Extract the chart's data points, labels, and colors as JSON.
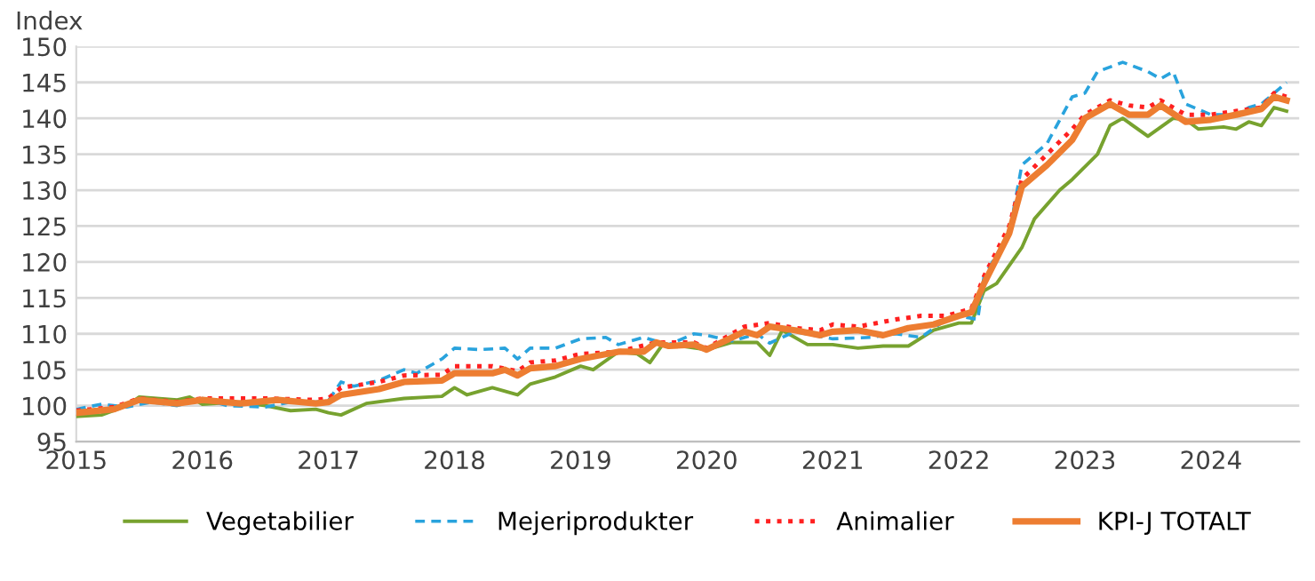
{
  "chart_data": {
    "type": "line",
    "ylabel": "Index",
    "xlim": [
      2015,
      2024.7
    ],
    "xticks": [
      2015,
      2016,
      2017,
      2018,
      2019,
      2020,
      2021,
      2022,
      2023,
      2024
    ],
    "ylim": [
      95,
      150
    ],
    "yticks": [
      95,
      100,
      105,
      110,
      115,
      120,
      125,
      130,
      135,
      140,
      145,
      150
    ],
    "grid": "y",
    "legend": "bottom",
    "marker": "none",
    "series": [
      {
        "name": "Vegetabilier",
        "color": "#77a22f",
        "line_style": "solid",
        "x": [
          2015.0,
          2015.2,
          2015.4,
          2015.5,
          2015.8,
          2015.9,
          2016.0,
          2016.3,
          2016.5,
          2016.7,
          2016.9,
          2017.0,
          2017.1,
          2017.3,
          2017.6,
          2017.8,
          2017.9,
          2018.0,
          2018.1,
          2018.3,
          2018.5,
          2018.6,
          2018.8,
          2019.0,
          2019.1,
          2019.3,
          2019.45,
          2019.55,
          2019.65,
          2019.8,
          2020.0,
          2020.2,
          2020.4,
          2020.5,
          2020.6,
          2020.8,
          2021.0,
          2021.2,
          2021.4,
          2021.6,
          2021.8,
          2022.0,
          2022.1,
          2022.2,
          2022.3,
          2022.5,
          2022.6,
          2022.8,
          2022.9,
          2023.1,
          2023.2,
          2023.3,
          2023.5,
          2023.7,
          2023.8,
          2023.9,
          2024.1,
          2024.2,
          2024.3,
          2024.4,
          2024.5,
          2024.6
        ],
        "values": [
          98.5,
          98.7,
          100,
          101.2,
          100.8,
          101.2,
          100.2,
          100.5,
          100,
          99.3,
          99.5,
          99,
          98.7,
          100.3,
          101,
          101.2,
          101.3,
          102.5,
          101.5,
          102.5,
          101.5,
          103,
          104,
          105.5,
          105,
          107.5,
          107.2,
          106,
          108.5,
          108.3,
          107.8,
          108.8,
          108.8,
          107,
          110.5,
          108.5,
          108.5,
          108,
          108.3,
          108.3,
          110.5,
          111.5,
          111.5,
          116,
          117,
          122,
          126,
          130,
          131.5,
          135,
          139,
          140,
          137.5,
          140,
          139.8,
          138.5,
          138.8,
          138.5,
          139.5,
          139,
          141.5,
          141
        ]
      },
      {
        "name": "Mejeriprodukter",
        "color": "#29a3dd",
        "line_style": "dashed",
        "x": [
          2015.0,
          2015.2,
          2015.4,
          2015.6,
          2015.8,
          2016.0,
          2016.2,
          2016.5,
          2016.7,
          2016.9,
          2017.0,
          2017.1,
          2017.2,
          2017.4,
          2017.6,
          2017.7,
          2017.9,
          2018.0,
          2018.2,
          2018.4,
          2018.5,
          2018.6,
          2018.8,
          2019.0,
          2019.2,
          2019.3,
          2019.5,
          2019.7,
          2019.9,
          2020.0,
          2020.2,
          2020.4,
          2020.5,
          2020.7,
          2021.0,
          2021.3,
          2021.5,
          2021.7,
          2021.9,
          2022.0,
          2022.15,
          2022.2,
          2022.4,
          2022.5,
          2022.7,
          2022.9,
          2023.0,
          2023.1,
          2023.3,
          2023.5,
          2023.6,
          2023.7,
          2023.8,
          2024.0,
          2024.2,
          2024.3,
          2024.4,
          2024.5,
          2024.6
        ],
        "values": [
          99.5,
          100.2,
          99.8,
          100.5,
          100,
          101,
          100,
          99.8,
          100.5,
          100.5,
          100.7,
          103.3,
          102.7,
          103.5,
          105,
          104.5,
          106.5,
          108,
          107.8,
          108,
          106.5,
          108,
          108,
          109.3,
          109.5,
          108.5,
          109.5,
          108.5,
          110,
          109.8,
          109,
          110,
          108.7,
          110.3,
          109.3,
          109.5,
          110,
          109.5,
          112,
          112.5,
          112,
          118,
          124,
          133.5,
          136.5,
          143,
          143.5,
          146.5,
          147.8,
          146.5,
          145.5,
          146.5,
          142,
          140.5,
          140.5,
          141.5,
          142,
          143.5,
          145
        ]
      },
      {
        "name": "Animalier",
        "color": "#ff2020",
        "line_style": "dotted",
        "x": [
          2015.0,
          2015.3,
          2015.5,
          2015.8,
          2016.0,
          2016.5,
          2016.9,
          2017.0,
          2017.1,
          2017.4,
          2017.6,
          2017.9,
          2018.0,
          2018.3,
          2018.5,
          2018.6,
          2018.8,
          2019.0,
          2019.3,
          2019.6,
          2019.9,
          2020.0,
          2020.3,
          2020.5,
          2020.7,
          2020.9,
          2021.0,
          2021.2,
          2021.5,
          2021.7,
          2021.9,
          2022.1,
          2022.2,
          2022.4,
          2022.5,
          2022.7,
          2022.9,
          2023.0,
          2023.2,
          2023.35,
          2023.5,
          2023.6,
          2023.8,
          2024.0,
          2024.2,
          2024.4,
          2024.5,
          2024.6
        ],
        "values": [
          99.3,
          99.8,
          101,
          100.5,
          101,
          101,
          100.8,
          101,
          102.5,
          103.3,
          104.2,
          104.3,
          105.5,
          105.5,
          104.8,
          106,
          106.3,
          107.2,
          107.5,
          108.8,
          108.8,
          108,
          111,
          111.5,
          110.8,
          110.5,
          111.3,
          111,
          112,
          112.5,
          112.5,
          113.5,
          118,
          125,
          131.5,
          135,
          138.5,
          140.5,
          142.5,
          141.8,
          141.5,
          142.5,
          140.5,
          140.5,
          141,
          141.5,
          143.5,
          143
        ]
      },
      {
        "name": "KPI-J TOTALT",
        "color": "#ed7d31",
        "line_style": "solid",
        "x": [
          2015.0,
          2015.3,
          2015.5,
          2015.8,
          2016.0,
          2016.3,
          2016.6,
          2016.9,
          2017.0,
          2017.1,
          2017.4,
          2017.6,
          2017.9,
          2018.0,
          2018.3,
          2018.4,
          2018.5,
          2018.6,
          2018.8,
          2019.0,
          2019.3,
          2019.5,
          2019.6,
          2019.7,
          2019.9,
          2020.0,
          2020.3,
          2020.4,
          2020.5,
          2020.7,
          2020.9,
          2021.0,
          2021.2,
          2021.4,
          2021.6,
          2021.8,
          2022.0,
          2022.1,
          2022.2,
          2022.4,
          2022.5,
          2022.7,
          2022.9,
          2023.0,
          2023.2,
          2023.35,
          2023.5,
          2023.6,
          2023.8,
          2024.0,
          2024.2,
          2024.4,
          2024.5,
          2024.6
        ],
        "values": [
          99,
          99.5,
          100.8,
          100.3,
          100.8,
          100.3,
          100.8,
          100.3,
          100.5,
          101.5,
          102.3,
          103.3,
          103.5,
          104.5,
          104.5,
          105,
          104.2,
          105.2,
          105.5,
          106.5,
          107.5,
          107.5,
          108.8,
          108.3,
          108.5,
          107.8,
          110.3,
          109.8,
          111,
          110.5,
          109.8,
          110.3,
          110.5,
          109.8,
          110.8,
          111.3,
          112.5,
          113,
          117,
          124,
          130.5,
          133.5,
          137,
          140,
          142,
          140.5,
          140.5,
          141.8,
          139.5,
          139.8,
          140.5,
          141.3,
          143,
          142.5
        ]
      }
    ]
  }
}
